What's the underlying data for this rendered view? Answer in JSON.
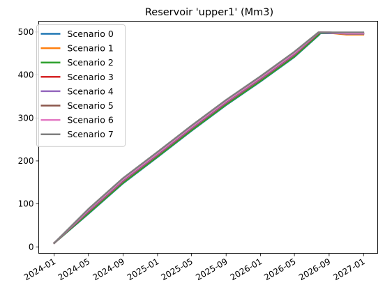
{
  "chart_data": {
    "type": "line",
    "title": "Reservoir 'upper1' (Mm3)",
    "xlabel": "",
    "ylabel": "",
    "x_ticks": [
      "2024-01",
      "2024-05",
      "2024-09",
      "2025-01",
      "2025-05",
      "2025-09",
      "2026-01",
      "2026-05",
      "2026-09",
      "2027-01"
    ],
    "y_ticks": [
      0,
      100,
      200,
      300,
      400,
      500
    ],
    "xlim": [
      "2023-11-07",
      "2027-02-20"
    ],
    "ylim": [
      -15,
      525
    ],
    "grid": false,
    "legend_position": "upper-left",
    "x": [
      "2024-01-01",
      "2024-05-01",
      "2024-09-01",
      "2025-01-01",
      "2025-05-01",
      "2025-09-01",
      "2026-01-01",
      "2026-05-01",
      "2026-07-25",
      "2026-08-01",
      "2026-09-01",
      "2026-10-01",
      "2026-11-01",
      "2026-12-01",
      "2026-12-31"
    ],
    "series": [
      {
        "name": "Scenario 0",
        "color": "#1f77b4",
        "values": [
          9,
          77,
          148,
          209,
          270,
          330,
          385,
          442,
          492,
          497,
          497,
          497,
          497,
          497,
          497
        ]
      },
      {
        "name": "Scenario 1",
        "color": "#ff7f0e",
        "values": [
          9,
          80,
          151,
          212,
          273,
          333,
          388,
          445,
          495,
          498,
          498,
          496,
          494,
          494,
          494
        ]
      },
      {
        "name": "Scenario 2",
        "color": "#2ca02c",
        "values": [
          9,
          78,
          149,
          210,
          271,
          331,
          386,
          443,
          493,
          498,
          498,
          497,
          496,
          496,
          496
        ]
      },
      {
        "name": "Scenario 3",
        "color": "#d62728",
        "values": [
          9,
          82,
          153,
          214,
          275,
          335,
          390,
          447,
          497,
          499,
          498,
          497,
          496,
          496,
          496
        ]
      },
      {
        "name": "Scenario 4",
        "color": "#9467bd",
        "values": [
          9,
          83,
          154,
          215,
          276,
          336,
          391,
          448,
          498,
          499,
          498,
          497,
          496,
          496,
          496
        ]
      },
      {
        "name": "Scenario 5",
        "color": "#8c564b",
        "values": [
          9,
          85,
          156,
          217,
          278,
          338,
          393,
          450,
          499,
          499,
          499,
          498,
          497,
          497,
          497
        ]
      },
      {
        "name": "Scenario 6",
        "color": "#e377c2",
        "values": [
          9,
          86,
          157,
          218,
          279,
          339,
          394,
          451,
          499,
          499,
          499,
          498,
          497,
          497,
          497
        ]
      },
      {
        "name": "Scenario 7",
        "color": "#7f7f7f",
        "values": [
          9,
          88,
          160,
          221,
          282,
          342,
          397,
          454,
          499,
          499,
          499,
          499,
          499,
          499,
          499
        ]
      }
    ]
  }
}
